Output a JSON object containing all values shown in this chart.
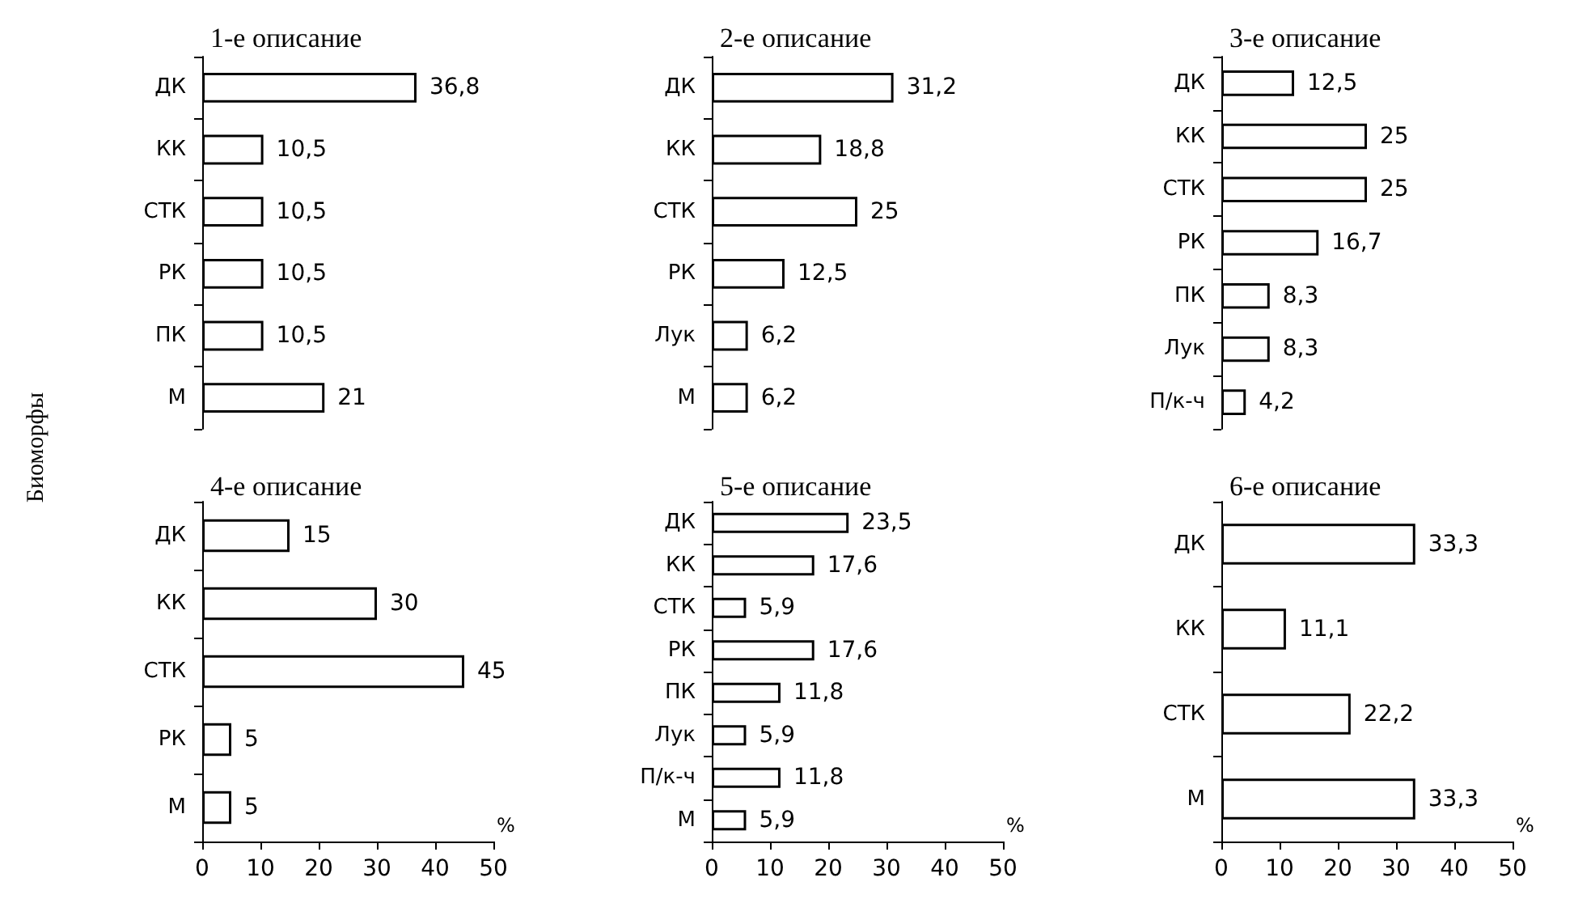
{
  "chart_data": [
    {
      "type": "bar",
      "orientation": "horizontal",
      "title": "1-е описание",
      "ylabel": "Биоморфы",
      "categories": [
        "ДК",
        "КК",
        "СТК",
        "РК",
        "ПК",
        "М"
      ],
      "color": "#ffffff",
      "values": [
        36.8,
        10.5,
        10.5,
        10.5,
        10.5,
        21
      ],
      "value_labels": [
        "36,8",
        "10,5",
        "10,5",
        "10,5",
        "10,5",
        "21"
      ],
      "xlim": [
        0,
        50
      ],
      "xticks": [
        0,
        10,
        20,
        30,
        40,
        50
      ],
      "tick_labels": "y"
    },
    {
      "type": "bar",
      "orientation": "horizontal",
      "title": "2-е описание",
      "categories": [
        "ДК",
        "КК",
        "СТК",
        "РК",
        "Лук",
        "М"
      ],
      "color": "#ffffff",
      "values": [
        31.2,
        18.8,
        25,
        12.5,
        6.2,
        6.2
      ],
      "value_labels": [
        "31,2",
        "18,8",
        "25",
        "12,5",
        "6,2",
        "6,2"
      ],
      "xlim": [
        0,
        50
      ],
      "xticks": [
        0,
        10,
        20,
        30,
        40,
        50
      ],
      "tick_labels": "y"
    },
    {
      "type": "bar",
      "orientation": "horizontal",
      "title": "3-е описание",
      "categories": [
        "ДК",
        "КК",
        "СТК",
        "РК",
        "ПК",
        "Лук",
        "П/к-ч"
      ],
      "color": "#ffffff",
      "values": [
        12.5,
        25,
        25,
        16.7,
        8.3,
        8.3,
        4.2
      ],
      "value_labels": [
        "12,5",
        "25",
        "25",
        "16,7",
        "8,3",
        "8,3",
        "4,2"
      ],
      "xlim": [
        0,
        50
      ],
      "xticks": [
        0,
        10,
        20,
        30,
        40,
        50
      ],
      "tick_labels": "y"
    },
    {
      "type": "bar",
      "orientation": "horizontal",
      "title": "4-е описание",
      "xlabel": "%",
      "categories": [
        "ДК",
        "КК",
        "СТК",
        "РК",
        "М"
      ],
      "color": "#ffffff",
      "values": [
        15,
        30,
        45,
        5,
        5
      ],
      "value_labels": [
        "15",
        "30",
        "45",
        "5",
        "5"
      ],
      "xlim": [
        0,
        50
      ],
      "xticks": [
        0,
        10,
        20,
        30,
        40,
        50
      ]
    },
    {
      "type": "bar",
      "orientation": "horizontal",
      "title": "5-е описание",
      "xlabel": "%",
      "categories": [
        "ДК",
        "КК",
        "СТК",
        "РК",
        "ПК",
        "Лук",
        "П/к-ч",
        "М"
      ],
      "color": "#ffffff",
      "values": [
        23.5,
        17.6,
        5.9,
        17.6,
        11.8,
        5.9,
        11.8,
        5.9
      ],
      "value_labels": [
        "23,5",
        "17,6",
        "5,9",
        "17,6",
        "11,8",
        "5,9",
        "11,8",
        "5,9"
      ],
      "xlim": [
        0,
        50
      ],
      "xticks": [
        0,
        10,
        20,
        30,
        40,
        50
      ]
    },
    {
      "type": "bar",
      "orientation": "horizontal",
      "title": "6-е описание",
      "xlabel": "%",
      "categories": [
        "ДК",
        "КК",
        "СТК",
        "М"
      ],
      "color": "#ffffff",
      "values": [
        33.3,
        11.1,
        22.2,
        33.3
      ],
      "value_labels": [
        "33,3",
        "11,1",
        "22,2",
        "33,3"
      ],
      "xlim": [
        0,
        50
      ],
      "xticks": [
        0,
        10,
        20,
        30,
        40,
        50
      ]
    }
  ]
}
